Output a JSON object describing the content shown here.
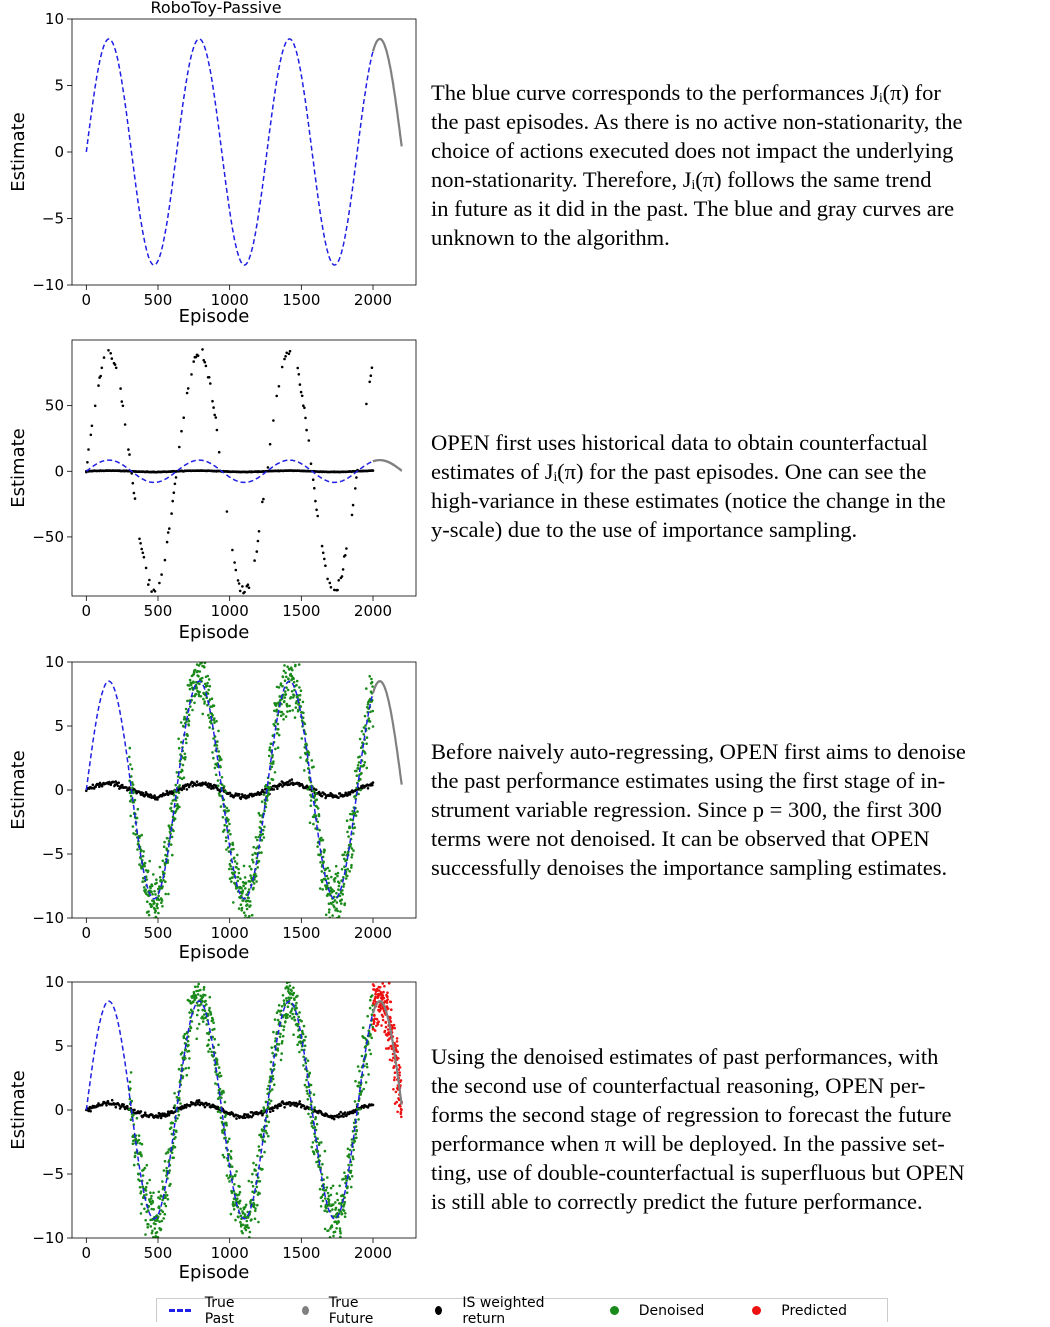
{
  "figure_title": "RoboToy-Passive",
  "colors": {
    "true_past": "#1f1fe6",
    "true_future": "#808080",
    "is_weighted": "#000000",
    "denoised": "#1a8a1a",
    "predicted": "#ee1111"
  },
  "legend": [
    {
      "label": "True Past",
      "marker": "dash",
      "color": "#1f1fe6"
    },
    {
      "label": "True Future",
      "marker": "dot",
      "color": "#808080"
    },
    {
      "label": "IS weighted return",
      "marker": "dot",
      "color": "#000000"
    },
    {
      "label": "Denoised",
      "marker": "dot",
      "color": "#1a8a1a"
    },
    {
      "label": "Predicted",
      "marker": "dot",
      "color": "#ee1111"
    }
  ],
  "chart_data": [
    {
      "type": "line",
      "title": "RoboToy-Passive",
      "xlabel": "Episode",
      "ylabel": "Estimate",
      "xlim": [
        -100,
        2300
      ],
      "ylim": [
        -10,
        10
      ],
      "xticks": [
        0,
        500,
        1000,
        1500,
        2000
      ],
      "yticks": [
        -10,
        -5,
        0,
        5,
        10
      ],
      "ytick_labels": [
        "−10",
        "−5",
        "0",
        "5",
        "10"
      ],
      "series": [
        {
          "name": "True Past",
          "function": "8.5*sin(2*pi*x/630)",
          "x_range": [
            0,
            2000
          ],
          "style": "dashed"
        },
        {
          "name": "True Future",
          "function": "8.5*sin(2*pi*x/630)",
          "x_range": [
            2000,
            2200
          ],
          "style": "solid"
        }
      ]
    },
    {
      "type": "scatter",
      "xlabel": "Episode",
      "ylabel": "Estimate",
      "xlim": [
        -100,
        2300
      ],
      "ylim": [
        -95,
        100
      ],
      "xticks": [
        0,
        500,
        1000,
        1500,
        2000
      ],
      "yticks": [
        -50,
        0,
        50
      ],
      "ytick_labels": [
        "−50",
        "0",
        "50"
      ],
      "series": [
        {
          "name": "True Past",
          "function": "8.5*sin(2*pi*x/630)",
          "x_range": [
            0,
            2000
          ],
          "style": "dashed"
        },
        {
          "name": "True Future",
          "function": "8.5*sin(2*pi*x/630)",
          "x_range": [
            2000,
            2200
          ],
          "style": "solid"
        },
        {
          "name": "IS weighted return",
          "function": "90*sin(2*pi*x/630)",
          "x_range": [
            0,
            2000
          ],
          "count": 260,
          "noise": 2,
          "sparse": true
        },
        {
          "name": "IS weighted return (mean)",
          "function": "0.5*sin(2*pi*x/630)",
          "x_range": [
            0,
            2000
          ],
          "count": 400,
          "noise": 0.1
        }
      ]
    },
    {
      "type": "scatter",
      "xlabel": "Episode",
      "ylabel": "Estimate",
      "xlim": [
        -100,
        2300
      ],
      "ylim": [
        -10,
        10
      ],
      "xticks": [
        0,
        500,
        1000,
        1500,
        2000
      ],
      "yticks": [
        -10,
        -5,
        0,
        5,
        10
      ],
      "ytick_labels": [
        "−10",
        "−5",
        "0",
        "5",
        "10"
      ],
      "series": [
        {
          "name": "IS weighted return",
          "function": "0.5*sin(2*pi*x/630)",
          "x_range": [
            0,
            2000
          ],
          "count": 400,
          "noise": 0.1
        },
        {
          "name": "Denoised",
          "function": "8.5*sin(2*pi*x/630)",
          "x_range": [
            300,
            2000
          ],
          "count": 1100,
          "noise": 1.2
        },
        {
          "name": "True Past",
          "function": "8.5*sin(2*pi*x/630)",
          "x_range": [
            0,
            2000
          ],
          "style": "dashed"
        },
        {
          "name": "True Future",
          "function": "8.5*sin(2*pi*x/630)",
          "x_range": [
            2000,
            2200
          ],
          "style": "solid"
        }
      ]
    },
    {
      "type": "scatter",
      "xlabel": "Episode",
      "ylabel": "Estimate",
      "xlim": [
        -100,
        2300
      ],
      "ylim": [
        -10,
        10
      ],
      "xticks": [
        0,
        500,
        1000,
        1500,
        2000
      ],
      "yticks": [
        -10,
        -5,
        0,
        5,
        10
      ],
      "ytick_labels": [
        "−10",
        "−5",
        "0",
        "5",
        "10"
      ],
      "series": [
        {
          "name": "IS weighted return",
          "function": "0.5*sin(2*pi*x/630)",
          "x_range": [
            0,
            2000
          ],
          "count": 400,
          "noise": 0.1
        },
        {
          "name": "Denoised",
          "function": "8.5*sin(2*pi*x/630)",
          "x_range": [
            300,
            2000
          ],
          "count": 1100,
          "noise": 1.2
        },
        {
          "name": "True Past",
          "function": "8.5*sin(2*pi*x/630)",
          "x_range": [
            0,
            2000
          ],
          "style": "dashed"
        },
        {
          "name": "True Future",
          "function": "8.5*sin(2*pi*x/630)",
          "x_range": [
            2000,
            2200
          ],
          "style": "solid"
        },
        {
          "name": "Predicted",
          "function": "8.5*sin(2*pi*x/630)",
          "x_range": [
            2000,
            2200
          ],
          "count": 220,
          "noise": 1.2
        }
      ]
    }
  ],
  "captions": [
    {
      "lines": [
        "The blue curve corresponds to the performances Jᵢ(π) for",
        "the past episodes. As there is no active non-stationarity, the",
        "choice of actions executed does not impact the underlying",
        "non-stationarity. Therefore, Jᵢ(π) follows the same trend",
        "in future as it did in the past. The blue and gray curves are",
        "unknown to the algorithm."
      ]
    },
    {
      "lines": [
        "OPEN first uses historical data to obtain counterfactual",
        "estimates of Jᵢ(π) for the past episodes. One can see the",
        "high-variance in these estimates (notice the change in the",
        "y-scale) due to the use of importance sampling."
      ]
    },
    {
      "lines": [
        "Before naively auto-regressing, OPEN first aims to denoise",
        "the past performance estimates using the first stage of in-",
        "strument variable regression. Since p = 300, the first 300",
        "terms were not denoised. It can be observed that OPEN",
        "successfully denoises the importance sampling estimates."
      ]
    },
    {
      "lines": [
        "Using the denoised estimates of past performances, with",
        "the second use of counterfactual reasoning, OPEN per-",
        "forms the second stage of regression to forecast the future",
        "performance when π will be deployed. In the passive set-",
        "ting, use of double-counterfactual is superfluous but OPEN",
        "is still able to correctly predict the future performance."
      ]
    }
  ]
}
